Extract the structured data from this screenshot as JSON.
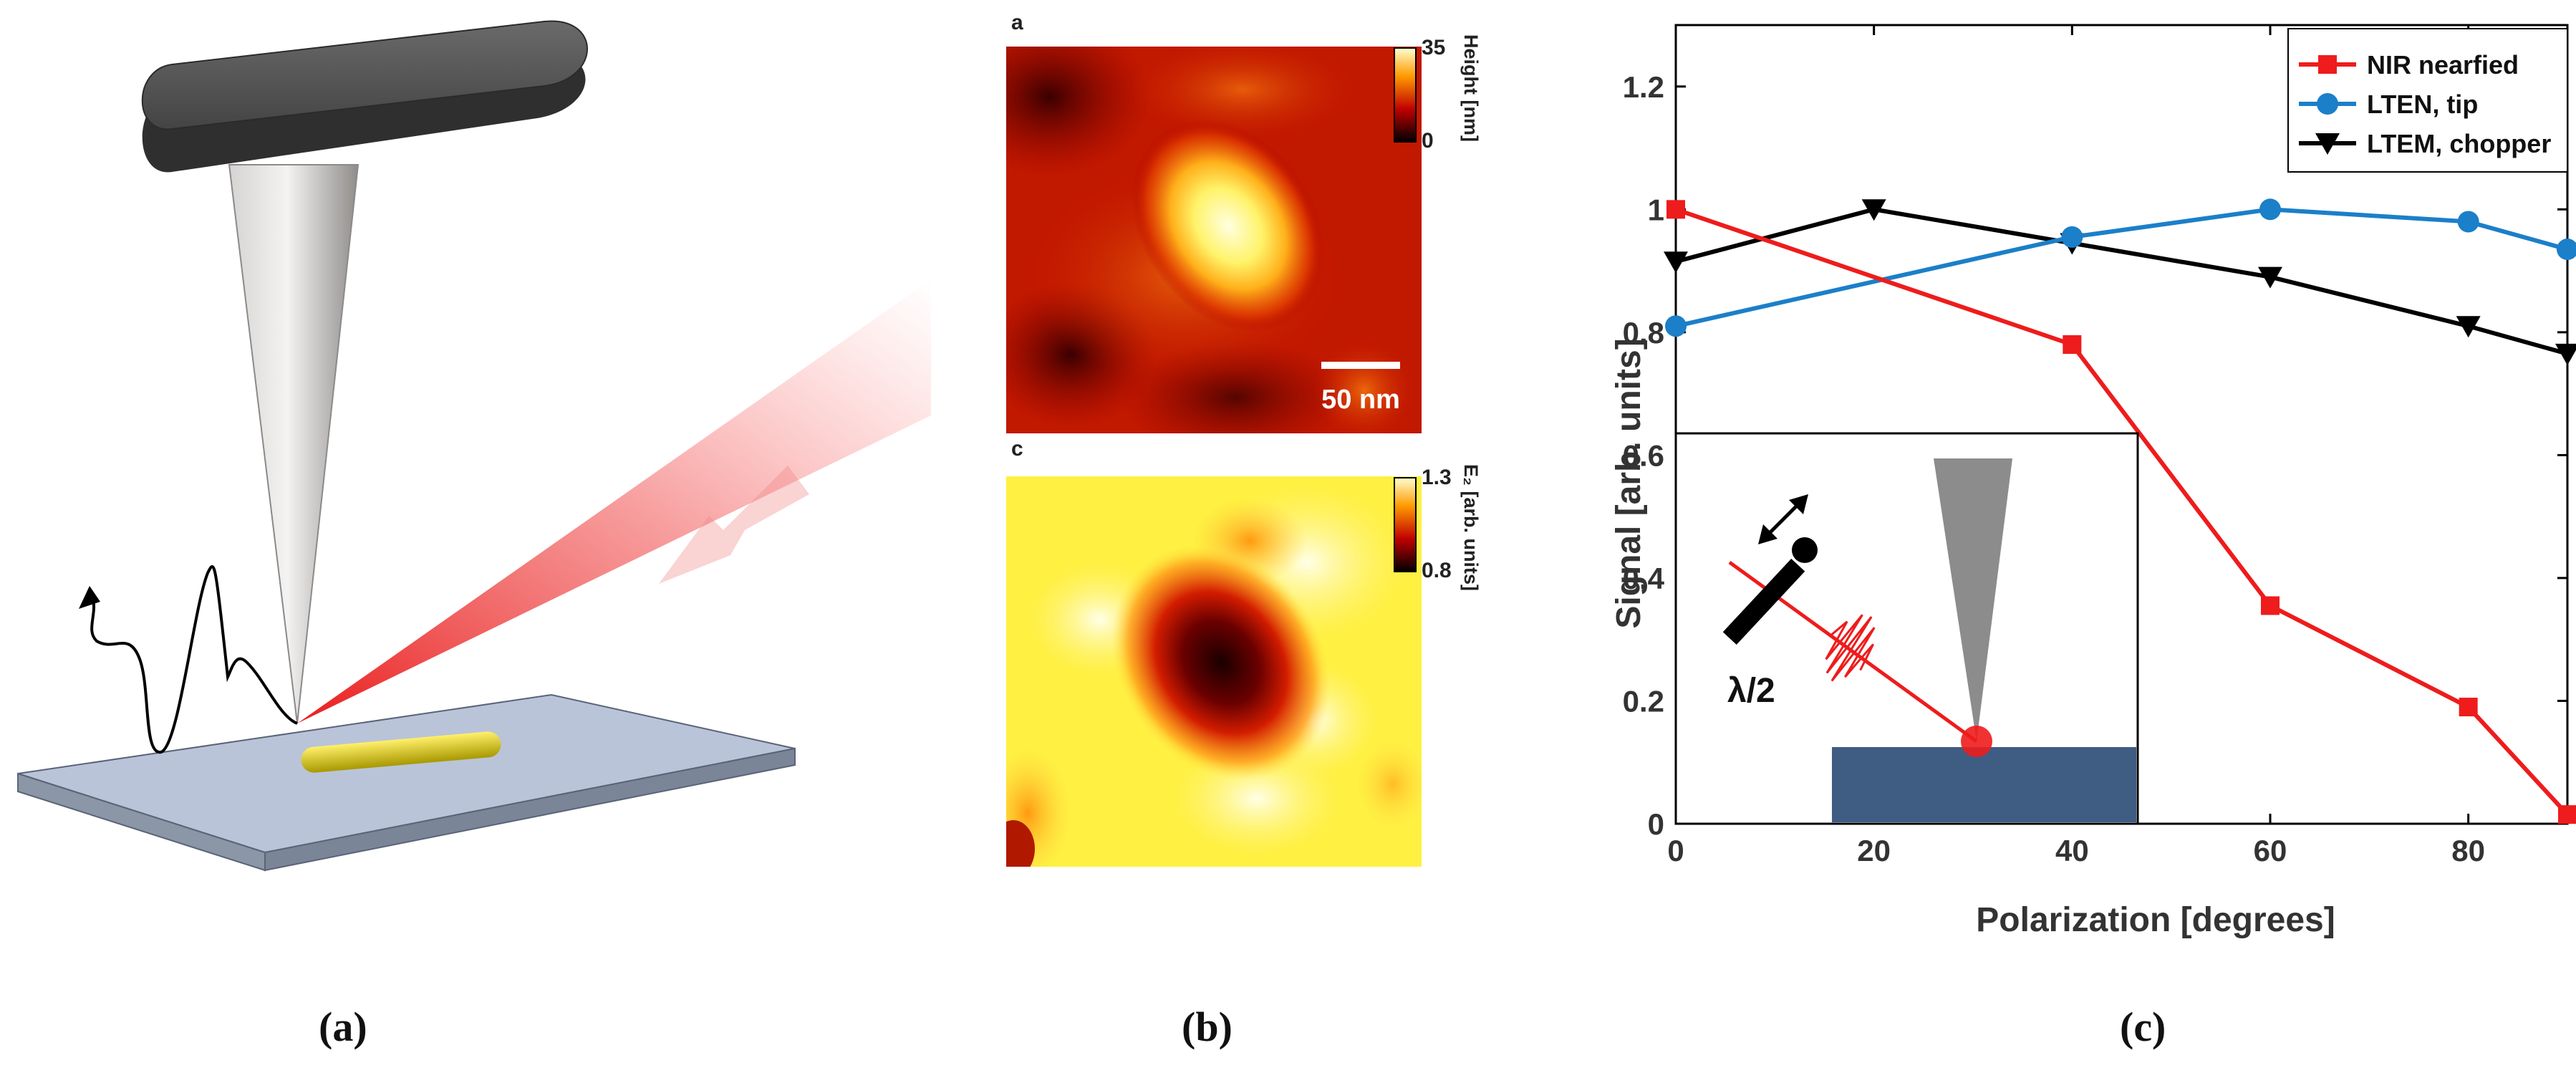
{
  "panels": {
    "a": {
      "label": "(a)"
    },
    "b": {
      "label": "(b)",
      "map_top": {
        "caption": "a",
        "colorbar_max": "35",
        "colorbar_min": "0",
        "colorbar_title": "Height [nm]",
        "scalebar": "50 nm"
      },
      "map_bottom": {
        "caption": "c",
        "colorbar_max": "1.3",
        "colorbar_min": "0.8",
        "colorbar_title": "E₂ [arb. units]"
      }
    },
    "c": {
      "label": "(c)",
      "inset_label": "λ/2"
    }
  },
  "colors": {
    "red": "#ee1c1c",
    "blue": "#1b7fc9",
    "black": "#000000",
    "substrate": "#3f5c82",
    "cantilever": "#3c3c3c"
  },
  "chart_data": {
    "type": "line",
    "title": "",
    "xlabel": "Polarization [degrees]",
    "ylabel": "Signal [arb. units]",
    "xlim": [
      0,
      90
    ],
    "ylim": [
      0,
      1.3
    ],
    "xticks": [
      0,
      20,
      40,
      60,
      80
    ],
    "yticks": [
      0,
      0.2,
      0.4,
      0.6,
      0.8,
      1,
      1.2
    ],
    "ytick_labels": [
      "0",
      "0.2",
      "0.4",
      "0.6",
      "0.8",
      "1",
      "1.2"
    ],
    "legend_position": "top-right",
    "series": [
      {
        "name": "NIR nearfied",
        "marker": "square",
        "color": "#ee1c1c",
        "x": [
          0,
          40,
          60,
          80,
          90
        ],
        "y": [
          1.0,
          0.78,
          0.355,
          0.19,
          0.015
        ]
      },
      {
        "name": "LTEN, tip",
        "marker": "circle",
        "color": "#1b7fc9",
        "x": [
          0,
          40,
          60,
          80,
          90
        ],
        "y": [
          0.81,
          0.955,
          1.0,
          0.98,
          0.935
        ]
      },
      {
        "name": "LTEM, chopper",
        "marker": "triangle-down",
        "color": "#000000",
        "x": [
          0,
          20,
          40,
          60,
          80,
          90
        ],
        "y": [
          0.915,
          1.0,
          0.945,
          0.89,
          0.81,
          0.765
        ]
      }
    ]
  }
}
